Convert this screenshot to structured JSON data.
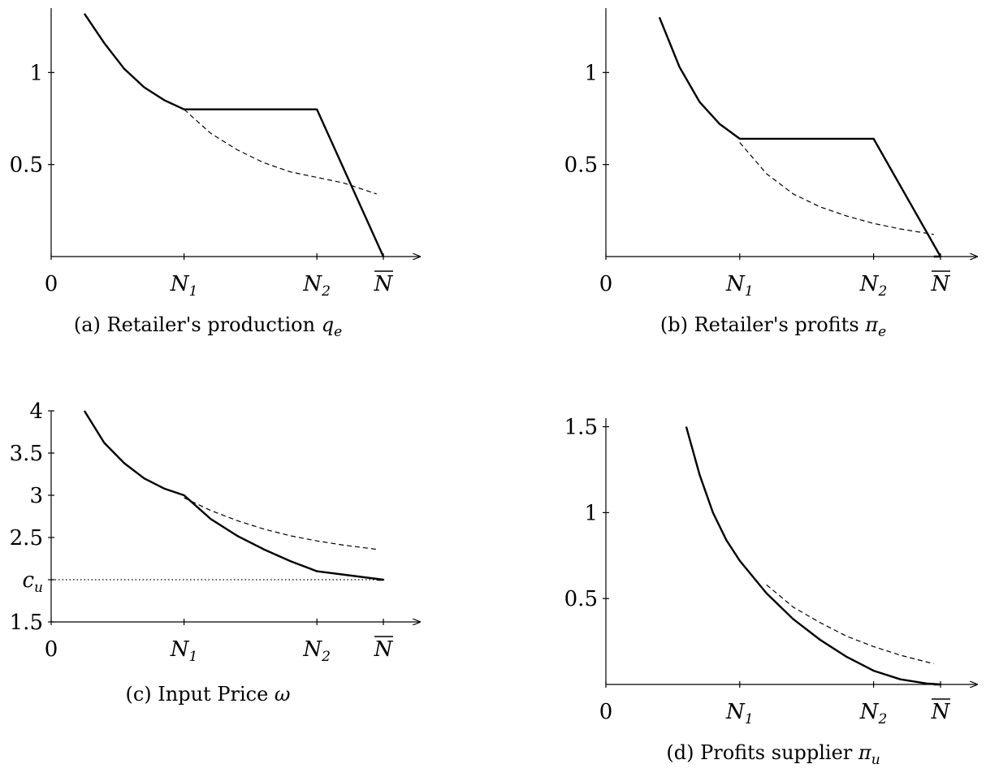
{
  "chart_data": [
    {
      "id": "a",
      "type": "line",
      "caption_text": "(a) Retailer's production ",
      "caption_math": "q",
      "caption_sub": "e",
      "x_tick_labels": [
        "0",
        "N1",
        "N2",
        "N̄"
      ],
      "x_ticks": [
        0,
        1,
        2,
        2.5
      ],
      "y_ticks": [
        0.5,
        1
      ],
      "y_tick_labels": [
        "0.5",
        "1"
      ],
      "xlim": [
        0,
        2.5
      ],
      "ylim": [
        0,
        1.35
      ],
      "series": [
        {
          "style": "solid",
          "x": [
            0.25,
            0.4,
            0.55,
            0.7,
            0.85,
            1,
            2,
            2.5,
            2.5
          ],
          "y": [
            1.32,
            1.16,
            1.02,
            0.92,
            0.85,
            0.8,
            0.8,
            0,
            0
          ]
        },
        {
          "style": "dashed",
          "x": [
            1,
            1.2,
            1.4,
            1.6,
            1.8,
            2,
            2.2,
            2.45
          ],
          "y": [
            0.8,
            0.67,
            0.58,
            0.51,
            0.46,
            0.43,
            0.4,
            0.34
          ]
        }
      ],
      "solid_tail_x": [
        2.5,
        2.45
      ],
      "solid_tail": [
        0,
        0
      ]
    },
    {
      "id": "b",
      "type": "line",
      "caption_text": "(b) Retailer's profits ",
      "caption_math": "π",
      "caption_sub": "e",
      "x_tick_labels": [
        "0",
        "N1",
        "N2",
        "N̄"
      ],
      "x_ticks": [
        0,
        1,
        2,
        2.5
      ],
      "y_ticks": [
        0.5,
        1
      ],
      "y_tick_labels": [
        "0.5",
        "1"
      ],
      "xlim": [
        0,
        2.5
      ],
      "ylim": [
        0,
        1.35
      ],
      "series": [
        {
          "style": "solid",
          "x": [
            0.4,
            0.55,
            0.7,
            0.85,
            1,
            2,
            2.5,
            2.45
          ],
          "y": [
            1.3,
            1.03,
            0.84,
            0.72,
            0.64,
            0.64,
            0,
            0
          ]
        },
        {
          "style": "dashed",
          "x": [
            1,
            1.2,
            1.4,
            1.6,
            1.8,
            2,
            2.2,
            2.45
          ],
          "y": [
            0.62,
            0.45,
            0.34,
            0.27,
            0.22,
            0.18,
            0.15,
            0.12
          ]
        }
      ]
    },
    {
      "id": "c",
      "type": "line",
      "caption_text": "(c) Input Price ",
      "caption_math": "ω",
      "caption_sub": "",
      "x_tick_labels": [
        "0",
        "N1",
        "N2",
        "N̄"
      ],
      "x_ticks": [
        0,
        1,
        2,
        2.5
      ],
      "y_ticks": [
        1.5,
        2,
        2.5,
        3,
        3.5,
        4
      ],
      "y_tick_labels": [
        "1.5",
        "cu",
        "2.5",
        "3",
        "3.5",
        "4"
      ],
      "xlim": [
        0,
        2.5
      ],
      "ylim": [
        1.5,
        4
      ],
      "cu": 2,
      "series": [
        {
          "style": "solid",
          "x": [
            0.25,
            0.4,
            0.55,
            0.7,
            0.85,
            1,
            1.2,
            1.4,
            1.6,
            1.8,
            2,
            2.5,
            2.45
          ],
          "y": [
            4,
            3.62,
            3.38,
            3.2,
            3.08,
            3,
            2.72,
            2.52,
            2.36,
            2.22,
            2.1,
            2,
            2
          ]
        },
        {
          "style": "dashed",
          "x": [
            1,
            1.2,
            1.4,
            1.6,
            1.8,
            2,
            2.2,
            2.45
          ],
          "y": [
            2.97,
            2.82,
            2.7,
            2.6,
            2.52,
            2.46,
            2.41,
            2.36
          ]
        },
        {
          "style": "dotted",
          "x": [
            0,
            2.45
          ],
          "y": [
            2,
            2
          ]
        }
      ]
    },
    {
      "id": "d",
      "type": "line",
      "caption_text": "(d) Profits supplier ",
      "caption_math": "π",
      "caption_sub": "u",
      "x_tick_labels": [
        "0",
        "N1",
        "N2",
        "N̄"
      ],
      "x_ticks": [
        0,
        1,
        2,
        2.5
      ],
      "y_ticks": [
        0.5,
        1,
        1.5
      ],
      "y_tick_labels": [
        "0.5",
        "1",
        "1.5"
      ],
      "xlim": [
        0,
        2.5
      ],
      "ylim": [
        0,
        1.55
      ],
      "series": [
        {
          "style": "solid",
          "x": [
            0.6,
            0.7,
            0.8,
            0.9,
            1,
            1.2,
            1.4,
            1.6,
            1.8,
            2,
            2.2,
            2.4,
            2.5,
            2.45
          ],
          "y": [
            1.5,
            1.22,
            1.0,
            0.84,
            0.72,
            0.53,
            0.38,
            0.26,
            0.16,
            0.08,
            0.03,
            0.005,
            0,
            0
          ]
        },
        {
          "style": "dashed",
          "x": [
            1.2,
            1.4,
            1.6,
            1.8,
            2,
            2.2,
            2.45
          ],
          "y": [
            0.58,
            0.45,
            0.36,
            0.28,
            0.22,
            0.17,
            0.12
          ]
        }
      ]
    }
  ]
}
